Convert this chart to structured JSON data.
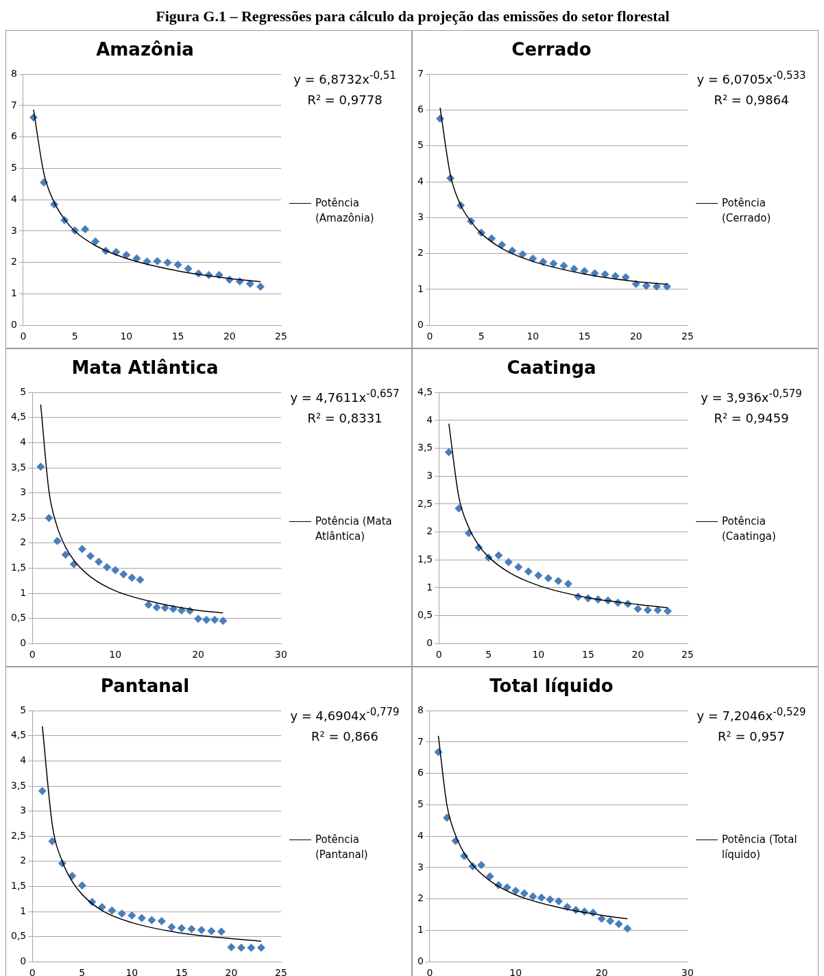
{
  "chart_data": [
    {
      "type": "scatter",
      "title": "Amazônia",
      "annotations": [
        "Figura G.1 – Regressões para cálculo da projeção das emissões do setor florestal",
        "y = 6,8732x$^{-0,51}$",
        "R² = 0,9778"
      ],
      "grid": "y",
      "legend": "right",
      "xlim": [
        0,
        25
      ],
      "xticks": [
        0,
        5,
        10,
        15,
        20,
        25
      ],
      "ylim": [
        0,
        8
      ],
      "yticks": [
        0,
        1,
        2,
        3,
        4,
        5,
        6,
        7,
        8
      ],
      "x": [
        1,
        2,
        3,
        4,
        5,
        6,
        7,
        8,
        9,
        10,
        11,
        12,
        13,
        14,
        15,
        16,
        17,
        18,
        19,
        20,
        21,
        22,
        23
      ],
      "series": [
        {
          "color": "#4a7ebb",
          "marker": "diamond",
          "values": [
            6.62,
            4.55,
            3.85,
            3.35,
            3.02,
            3.06,
            2.67,
            2.37,
            2.33,
            2.24,
            2.13,
            2.03,
            2.04,
            2.0,
            1.93,
            1.8,
            1.65,
            1.6,
            1.6,
            1.45,
            1.4,
            1.32,
            1.23
          ]
        },
        {
          "type": "line",
          "name": "Potência (Amazônia)",
          "color": "#000000",
          "marker": "none",
          "x": [
            1,
            2,
            3,
            4,
            5,
            7,
            10,
            15,
            20,
            23
          ],
          "values": [
            6.87,
            4.84,
            3.92,
            3.38,
            3.0,
            2.54,
            2.13,
            1.73,
            1.49,
            1.39
          ]
        }
      ]
    },
    {
      "type": "scatter",
      "title": "Cerrado",
      "annotations": [
        "y = 6,0705x$^{-0,533}$",
        "R² = 0,9864"
      ],
      "grid": "y",
      "legend": "right",
      "xlim": [
        0,
        25
      ],
      "xticks": [
        0,
        5,
        10,
        15,
        20,
        25
      ],
      "ylim": [
        0,
        7
      ],
      "yticks": [
        0,
        1,
        2,
        3,
        4,
        5,
        6,
        7
      ],
      "x": [
        1,
        2,
        3,
        4,
        5,
        6,
        7,
        8,
        9,
        10,
        11,
        12,
        13,
        14,
        15,
        16,
        17,
        18,
        19,
        20,
        21,
        22,
        23
      ],
      "series": [
        {
          "color": "#4a7ebb",
          "marker": "diamond",
          "values": [
            5.76,
            4.1,
            3.34,
            2.9,
            2.58,
            2.42,
            2.24,
            2.08,
            1.98,
            1.86,
            1.77,
            1.72,
            1.66,
            1.57,
            1.51,
            1.45,
            1.42,
            1.37,
            1.34,
            1.15,
            1.1,
            1.08,
            1.08
          ]
        },
        {
          "type": "line",
          "name": "Potência (Cerrado)",
          "color": "#000000",
          "marker": "none",
          "x": [
            1,
            2,
            3,
            4,
            5,
            7,
            10,
            15,
            20,
            23
          ],
          "values": [
            6.07,
            4.19,
            3.35,
            2.89,
            2.56,
            2.14,
            1.78,
            1.43,
            1.22,
            1.14
          ]
        }
      ]
    },
    {
      "type": "scatter",
      "title": "Mata Atlântica",
      "annotations": [
        "y = 4,7611x$^{-0,657}$",
        "R² = 0,8331"
      ],
      "grid": "y",
      "legend": "right",
      "xlim": [
        0,
        30
      ],
      "xticks": [
        0,
        10,
        20,
        30
      ],
      "ylim": [
        0,
        5
      ],
      "yticks": [
        0,
        {
          "value": 0.5,
          "label": "0,5"
        },
        1,
        {
          "value": 1.5,
          "label": "1,5"
        },
        2,
        {
          "value": 2.5,
          "label": "2,5"
        },
        3,
        {
          "value": 3.5,
          "label": "3,5"
        },
        4,
        {
          "value": 4.5,
          "label": "4,5"
        },
        5
      ],
      "x": [
        1,
        2,
        3,
        4,
        5,
        6,
        7,
        8,
        9,
        10,
        11,
        12,
        13,
        14,
        15,
        16,
        17,
        18,
        19,
        20,
        21,
        22,
        23
      ],
      "series": [
        {
          "color": "#4a7ebb",
          "marker": "diamond",
          "values": [
            3.52,
            2.5,
            2.04,
            1.77,
            1.58,
            1.88,
            1.74,
            1.63,
            1.52,
            1.46,
            1.38,
            1.31,
            1.27,
            0.77,
            0.72,
            0.71,
            0.69,
            0.66,
            0.65,
            0.49,
            0.47,
            0.47,
            0.45
          ]
        },
        {
          "type": "line",
          "name": "Potência (Mata Atlântica)",
          "color": "#000000",
          "marker": "none",
          "x": [
            1,
            2,
            3,
            4,
            5,
            7,
            10,
            15,
            20,
            23
          ],
          "values": [
            4.76,
            3.03,
            2.32,
            1.92,
            1.66,
            1.33,
            1.05,
            0.81,
            0.66,
            0.61
          ]
        }
      ]
    },
    {
      "type": "scatter",
      "title": "Caatinga",
      "annotations": [
        "y = 3,936x$^{-0,579}$",
        "R² = 0,9459"
      ],
      "grid": "y",
      "legend": "right",
      "xlim": [
        0,
        25
      ],
      "xticks": [
        0,
        5,
        10,
        15,
        20,
        25
      ],
      "ylim": [
        0,
        4.5
      ],
      "yticks": [
        0,
        {
          "value": 0.5,
          "label": "0,5"
        },
        1,
        {
          "value": 1.5,
          "label": "1,5"
        },
        2,
        {
          "value": 2.5,
          "label": "2,5"
        },
        3,
        {
          "value": 3.5,
          "label": "3,5"
        },
        4,
        {
          "value": 4.5,
          "label": "4,5"
        }
      ],
      "x": [
        1,
        2,
        3,
        4,
        5,
        6,
        7,
        8,
        9,
        10,
        11,
        12,
        13,
        14,
        15,
        16,
        17,
        18,
        19,
        20,
        21,
        22,
        23
      ],
      "series": [
        {
          "color": "#4a7ebb",
          "marker": "diamond",
          "values": [
            3.43,
            2.42,
            1.98,
            1.72,
            1.54,
            1.58,
            1.46,
            1.37,
            1.29,
            1.22,
            1.17,
            1.12,
            1.07,
            0.84,
            0.81,
            0.79,
            0.77,
            0.73,
            0.71,
            0.62,
            0.6,
            0.6,
            0.58
          ]
        },
        {
          "type": "line",
          "name": "Potência (Caatinga)",
          "color": "#000000",
          "marker": "none",
          "x": [
            1,
            2,
            3,
            4,
            5,
            7,
            10,
            15,
            20,
            23
          ],
          "values": [
            3.94,
            2.63,
            2.08,
            1.76,
            1.55,
            1.28,
            1.04,
            0.82,
            0.7,
            0.64
          ]
        }
      ]
    },
    {
      "type": "scatter",
      "title": "Pantanal",
      "annotations": [
        "y = 4,6904x$^{-0,779}$",
        "R² = 0,866"
      ],
      "grid": "y",
      "legend": "right",
      "xlim": [
        0,
        25
      ],
      "xticks": [
        0,
        5,
        10,
        15,
        20,
        25
      ],
      "ylim": [
        0,
        5
      ],
      "yticks": [
        0,
        {
          "value": 0.5,
          "label": "0,5"
        },
        1,
        {
          "value": 1.5,
          "label": "1,5"
        },
        2,
        {
          "value": 2.5,
          "label": "2,5"
        },
        3,
        {
          "value": 3.5,
          "label": "3,5"
        },
        4,
        {
          "value": 4.5,
          "label": "4,5"
        },
        5
      ],
      "x": [
        1,
        2,
        3,
        4,
        5,
        6,
        7,
        8,
        9,
        10,
        11,
        12,
        13,
        14,
        15,
        16,
        17,
        18,
        19,
        20,
        21,
        22,
        23
      ],
      "series": [
        {
          "color": "#4a7ebb",
          "marker": "diamond",
          "values": [
            3.4,
            2.4,
            1.96,
            1.71,
            1.52,
            1.19,
            1.09,
            1.02,
            0.96,
            0.92,
            0.87,
            0.83,
            0.81,
            0.69,
            0.67,
            0.65,
            0.63,
            0.61,
            0.6,
            0.29,
            0.28,
            0.28,
            0.28
          ]
        },
        {
          "type": "line",
          "name": "Potência (Pantanal)",
          "color": "#000000",
          "marker": "none",
          "x": [
            1,
            2,
            3,
            4,
            5,
            7,
            10,
            15,
            20,
            23
          ],
          "values": [
            4.69,
            2.73,
            2.0,
            1.6,
            1.34,
            1.02,
            0.78,
            0.57,
            0.46,
            0.41
          ]
        }
      ]
    },
    {
      "type": "scatter",
      "title": "Total líquido",
      "annotations": [
        "y = 7,2046x$^{-0,529}$",
        "R² = 0,957"
      ],
      "grid": "y",
      "legend": "right",
      "xlim": [
        0,
        30
      ],
      "xticks": [
        0,
        10,
        20,
        30
      ],
      "ylim": [
        0,
        8
      ],
      "yticks": [
        0,
        1,
        2,
        3,
        4,
        5,
        6,
        7,
        8
      ],
      "x": [
        1,
        2,
        3,
        4,
        5,
        6,
        7,
        8,
        9,
        10,
        11,
        12,
        13,
        14,
        15,
        16,
        17,
        18,
        19,
        20,
        21,
        22,
        23
      ],
      "series": [
        {
          "color": "#4a7ebb",
          "marker": "diamond",
          "values": [
            6.68,
            4.59,
            3.85,
            3.37,
            3.04,
            3.08,
            2.72,
            2.44,
            2.37,
            2.26,
            2.18,
            2.08,
            2.04,
            1.98,
            1.93,
            1.75,
            1.65,
            1.6,
            1.56,
            1.37,
            1.3,
            1.2,
            1.06
          ]
        },
        {
          "type": "line",
          "name": "Potência (Total líquido)",
          "color": "#000000",
          "marker": "none",
          "x": [
            1,
            2,
            3,
            4,
            5,
            7,
            10,
            15,
            20,
            23
          ],
          "values": [
            7.2,
            4.99,
            4.03,
            3.46,
            3.08,
            2.58,
            2.13,
            1.73,
            1.48,
            1.37
          ]
        }
      ]
    }
  ]
}
